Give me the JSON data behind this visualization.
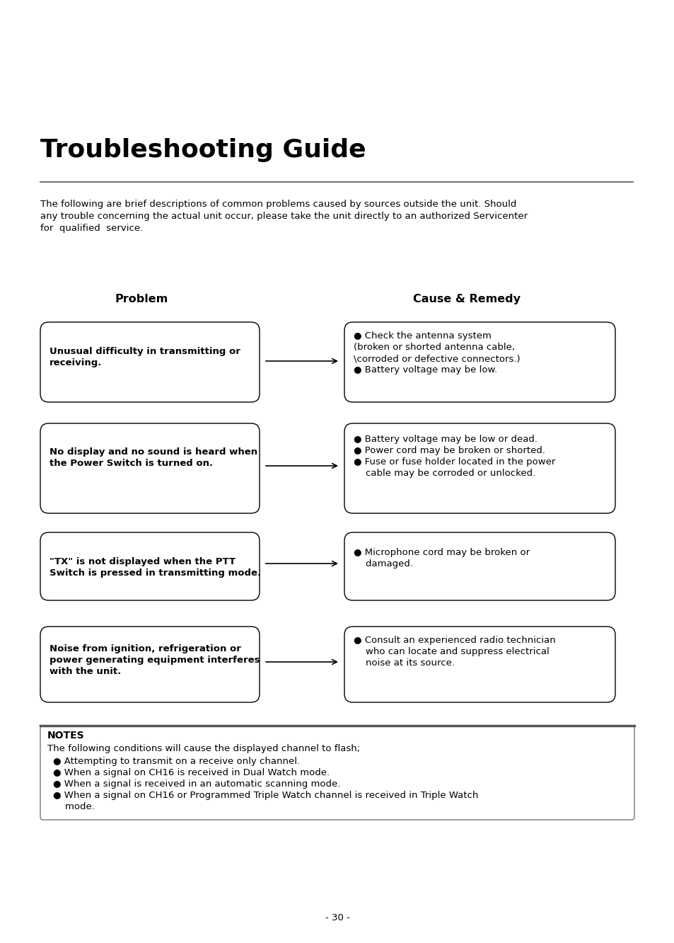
{
  "title": "Troubleshooting Guide",
  "intro_lines": [
    "The following are brief descriptions of common problems caused by sources outside the unit. Should",
    "any trouble concerning the actual unit occur, please take the unit directly to an authorized Servicenter",
    "for  qualified  service."
  ],
  "col_problem": "Problem",
  "col_remedy": "Cause & Remedy",
  "problems": [
    "Unusual difficulty in transmitting or\nreceiving.",
    "No display and no sound is heard when\nthe Power Switch is turned on.",
    "\"TX\" is not displayed when the PTT\nSwitch is pressed in transmitting mode.",
    "Noise from ignition, refrigeration or\npower generating equipment interferes\nwith the unit."
  ],
  "remedies": [
    "● Check the antenna system\n  (broken or shorted antenna cable,\n  \\corroded or defective connectors.)\n● Battery voltage may be low.",
    "● Battery voltage may be low or dead.\n● Power cord may be broken or shorted.\n● Fuse or fuse holder located in the power\n    cable may be corroded or unlocked.",
    "● Microphone cord may be broken or\n    damaged.",
    "● Consult an experienced radio technician\n    who can locate and suppress electrical\n    noise at its source."
  ],
  "remedy_lines": [
    [
      "● Check the antenna system",
      "(broken or shorted antenna cable,",
      "\\corroded or defective connectors.)",
      "● Battery voltage may be low."
    ],
    [
      "● Battery voltage may be low or dead.",
      "● Power cord may be broken or shorted.",
      "● Fuse or fuse holder located in the power",
      "    cable may be corroded or unlocked."
    ],
    [
      "● Microphone cord may be broken or",
      "    damaged."
    ],
    [
      "● Consult an experienced radio technician",
      "    who can locate and suppress electrical",
      "    noise at its source."
    ]
  ],
  "problem_lines": [
    [
      "Unusual difficulty in transmitting or",
      "receiving."
    ],
    [
      "No display and no sound is heard when",
      "the Power Switch is turned on."
    ],
    [
      "\"TX\" is not displayed when the PTT",
      "Switch is pressed in transmitting mode."
    ],
    [
      "Noise from ignition, refrigeration or",
      "power generating equipment interferes",
      "with the unit."
    ]
  ],
  "notes_title": "NOTES",
  "notes_intro": "The following conditions will cause the displayed channel to flash;",
  "notes_bullets": [
    "● Attempting to transmit on a receive only channel.",
    "● When a signal on CH16 is received in Dual Watch mode.",
    "● When a signal is received in an automatic scanning mode.",
    "● When a signal on CH16 or Programmed Triple Watch channel is received in Triple Watch",
    "    mode."
  ],
  "page_number": "- 30 -",
  "bg_color": "#ffffff",
  "text_color": "#000000",
  "box_border_color": "#000000"
}
